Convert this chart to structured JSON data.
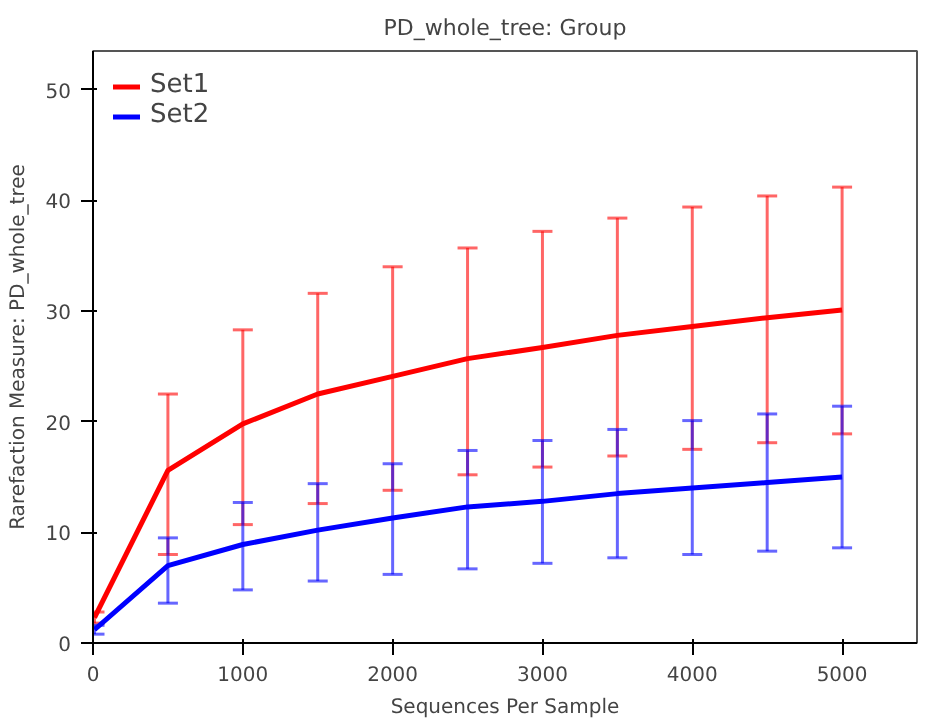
{
  "chart_data": {
    "type": "line",
    "title": "PD_whole_tree: Group",
    "xlabel": "Sequences Per Sample",
    "ylabel": "Rarefaction Measure: PD_whole_tree",
    "x": [
      10,
      500,
      1000,
      1500,
      2000,
      2500,
      3000,
      3500,
      4000,
      4500,
      5000
    ],
    "series": [
      {
        "name": "Set1",
        "color": "#ff0000",
        "values": [
          2.3,
          15.6,
          19.8,
          22.5,
          24.1,
          25.7,
          26.7,
          27.8,
          28.6,
          29.4,
          30.1
        ],
        "errors": [
          [
            1.8,
            2.8
          ],
          [
            8.0,
            22.5
          ],
          [
            10.7,
            28.3
          ],
          [
            12.6,
            31.6
          ],
          [
            13.8,
            34.0
          ],
          [
            15.2,
            35.7
          ],
          [
            15.9,
            37.2
          ],
          [
            16.9,
            38.4
          ],
          [
            17.5,
            39.4
          ],
          [
            18.1,
            40.4
          ],
          [
            18.9,
            41.2
          ]
        ]
      },
      {
        "name": "Set2",
        "color": "#0000ff",
        "values": [
          1.2,
          7.0,
          8.9,
          10.2,
          11.3,
          12.3,
          12.8,
          13.5,
          14.0,
          14.5,
          15.0
        ],
        "errors": [
          [
            0.8,
            1.6
          ],
          [
            3.6,
            9.5
          ],
          [
            4.8,
            12.7
          ],
          [
            5.6,
            14.4
          ],
          [
            6.2,
            16.2
          ],
          [
            6.7,
            17.4
          ],
          [
            7.2,
            18.3
          ],
          [
            7.7,
            19.3
          ],
          [
            8.0,
            20.1
          ],
          [
            8.3,
            20.7
          ],
          [
            8.6,
            21.4
          ]
        ]
      }
    ],
    "xlim": [
      0,
      5500
    ],
    "ylim": [
      0,
      53.5
    ],
    "xticks": [
      0,
      1000,
      2000,
      3000,
      4000,
      5000
    ],
    "yticks": [
      0,
      10,
      20,
      30,
      40,
      50
    ],
    "grid": false,
    "legend": "top left",
    "marker": "none",
    "line_style": "solid"
  }
}
